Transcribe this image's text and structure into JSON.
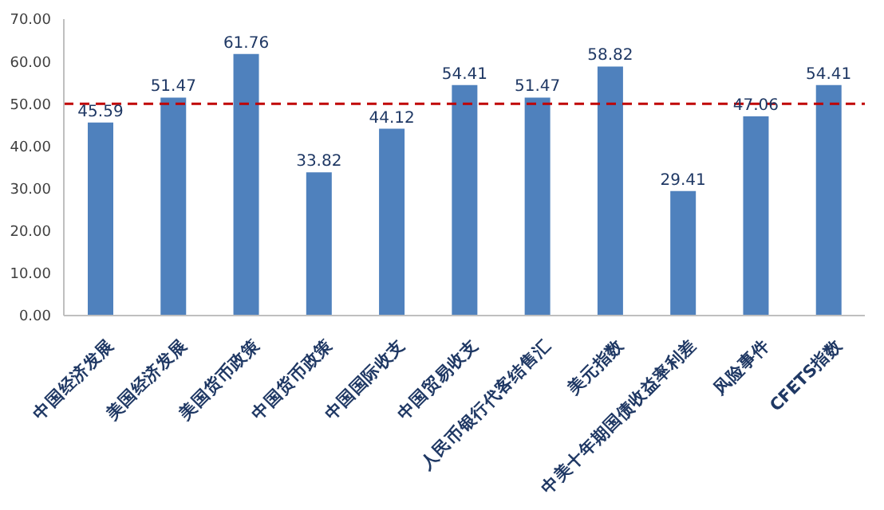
{
  "chart_data": {
    "type": "bar",
    "categories": [
      "中国经济发展",
      "美国经济发展",
      "美国货币政策",
      "中国货币政策",
      "中国国际收支",
      "中国贸易收支",
      "人民币银行代客结售汇",
      "美元指数",
      "中美十年期国债收益率利差",
      "风险事件",
      "CFETS指数"
    ],
    "values": [
      45.59,
      51.47,
      61.76,
      33.82,
      44.12,
      54.41,
      51.47,
      58.82,
      29.41,
      47.06,
      54.41
    ],
    "color": "#4f81bd",
    "ylim": [
      0,
      70
    ],
    "yticks": [
      {
        "value": 0,
        "label": "0.00"
      },
      {
        "value": 10,
        "label": "10.00"
      },
      {
        "value": 20,
        "label": "20.00"
      },
      {
        "value": 30,
        "label": "30.00"
      },
      {
        "value": 40,
        "label": "40.00"
      },
      {
        "value": 50,
        "label": "50.00"
      },
      {
        "value": 60,
        "label": "60.00"
      },
      {
        "value": 70,
        "label": "70.00"
      }
    ],
    "grid": false,
    "data_labels": true,
    "ref_lines": [
      {
        "axis": "y",
        "value": 50,
        "color": "#c00000",
        "line_style": "dashed"
      }
    ]
  }
}
